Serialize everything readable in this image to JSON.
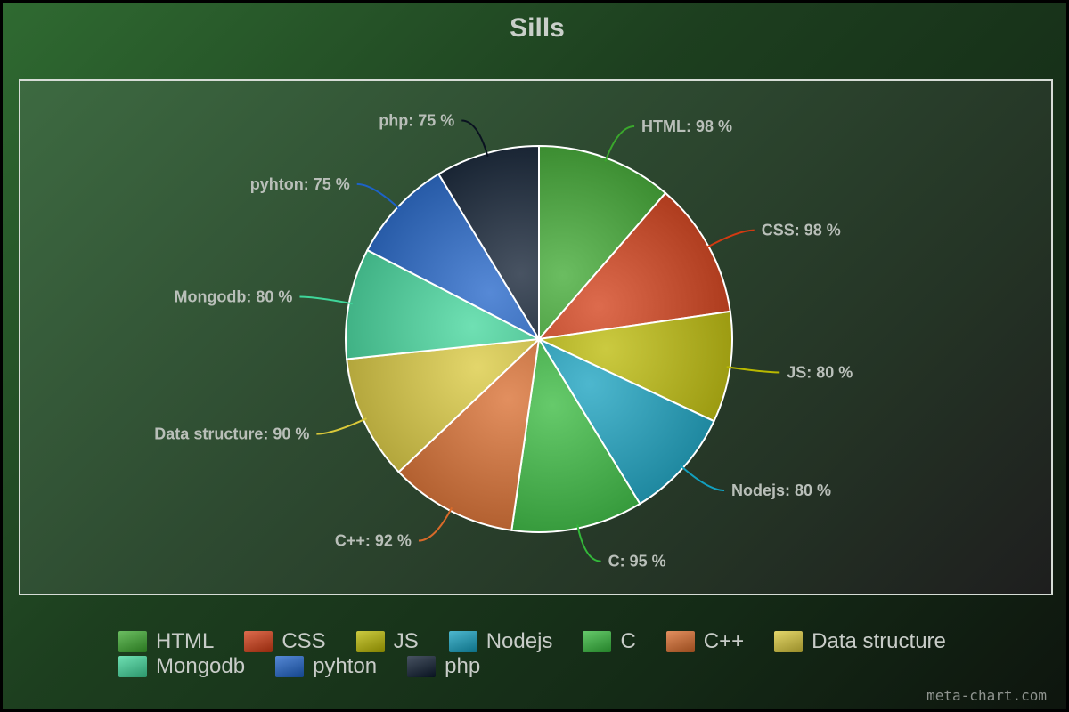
{
  "chart_data": {
    "type": "pie",
    "title": "Sills",
    "label_suffix": " %",
    "slices": [
      {
        "label": "HTML",
        "value": 98,
        "color": "#3aa72c"
      },
      {
        "label": "CSS",
        "value": 98,
        "color": "#d23a12"
      },
      {
        "label": "JS",
        "value": 80,
        "color": "#b9b800"
      },
      {
        "label": "Nodejs",
        "value": 80,
        "color": "#129fbe"
      },
      {
        "label": "C",
        "value": 95,
        "color": "#33b83a"
      },
      {
        "label": "C++",
        "value": 92,
        "color": "#d86a2a"
      },
      {
        "label": "Data structure",
        "value": 90,
        "color": "#d9c83a"
      },
      {
        "label": "Mongodb",
        "value": 80,
        "color": "#3fd69a"
      },
      {
        "label": "pyhton",
        "value": 75,
        "color": "#1d62c8"
      },
      {
        "label": "php",
        "value": 75,
        "color": "#0b1a2e"
      }
    ],
    "legend_position": "bottom"
  },
  "watermark": "meta-chart.com"
}
